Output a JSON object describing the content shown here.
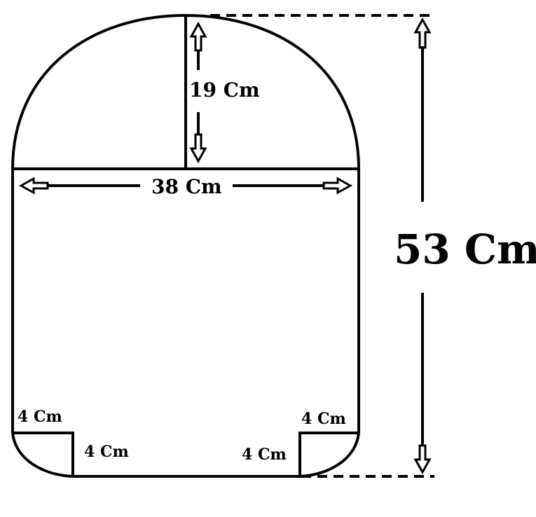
{
  "diagram": {
    "labels": {
      "arch_height": "19 Cm",
      "width": "38 Cm",
      "total_height": "53 Cm",
      "left_corner_vertical": "4 Cm",
      "left_corner_horizontal": "4 Cm",
      "right_corner_vertical": "4 Cm",
      "right_corner_horizontal": "4 Cm"
    },
    "colors": {
      "line": "#000000",
      "background": "#ffffff"
    }
  }
}
